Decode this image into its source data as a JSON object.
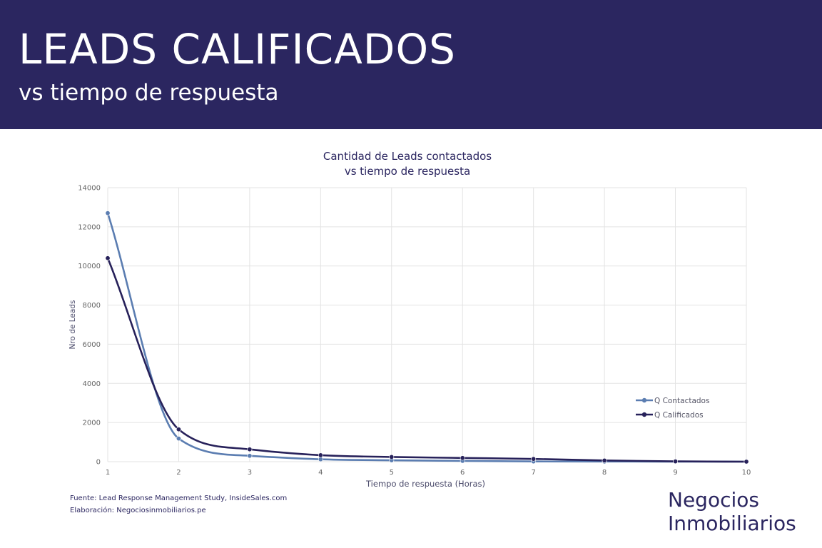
{
  "header": {
    "title": "LEADS CALIFICADOS",
    "subtitle": "vs tiempo de respuesta"
  },
  "footer": {
    "source_line": "Fuente: Lead Response Management Study, InsideSales.com",
    "elaboration_line": "Elaboración: Negociosinmobiliarios.pe"
  },
  "brand": {
    "line1": "Negocios",
    "line2": "Inmobiliarios"
  },
  "colors": {
    "header_bg": "#2b2660",
    "series_contactados": "#5b7db1",
    "series_calificados": "#27215a",
    "gridline": "#e3e3e3",
    "axis_text": "#666666"
  },
  "chart_data": {
    "type": "line",
    "title_lines": [
      "Cantidad de Leads contactados",
      "vs tiempo de respuesta"
    ],
    "xlabel": "Tiempo de respuesta (Horas)",
    "ylabel": "Nro de Leads",
    "x": [
      1,
      2,
      3,
      4,
      5,
      6,
      7,
      8,
      9,
      10
    ],
    "xlim": [
      1,
      10
    ],
    "ylim": [
      0,
      14000
    ],
    "yticks": [
      0,
      2000,
      4000,
      6000,
      8000,
      10000,
      12000,
      14000
    ],
    "grid": true,
    "smooth": true,
    "legend_position": "right",
    "series": [
      {
        "name": "Q Contactados",
        "color": "#5b7db1",
        "values": [
          12700,
          1180,
          300,
          120,
          70,
          40,
          10,
          5,
          3,
          0
        ]
      },
      {
        "name": "Q Calificados",
        "color": "#27215a",
        "values": [
          10400,
          1650,
          630,
          330,
          240,
          190,
          140,
          60,
          15,
          0
        ]
      }
    ]
  }
}
